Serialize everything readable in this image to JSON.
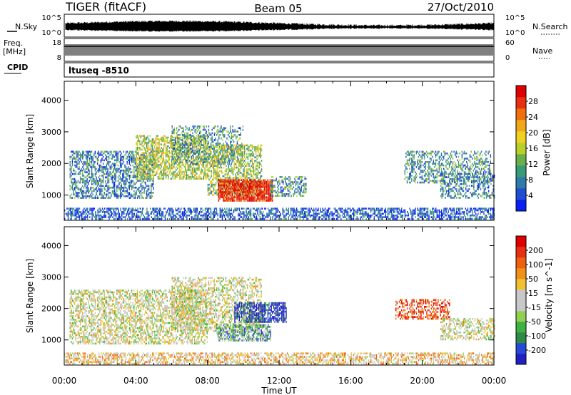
{
  "header": {
    "station": "TIGER (fitACF)",
    "beam": "Beam 05",
    "date": "27/Oct/2010"
  },
  "left_labels": {
    "nsky": "N.Sky",
    "nsky_top": "10^5",
    "nsky_bottom": "10^0",
    "freq": "Freq.",
    "freq_unit": "[MHz]",
    "freq_top": "18",
    "freq_bottom": "8",
    "cpid": "CPID"
  },
  "right_labels": {
    "nsearch": "N.Search",
    "nsearch_top": "10^5",
    "nsearch_bottom": "10^0",
    "nave": "Nave",
    "nave_top": "60",
    "nave_bottom": "0"
  },
  "cpid_text": "ltuseq -8510",
  "chart_data": [
    {
      "type": "heatmap",
      "name": "power",
      "ylabel": "Slant Range [km]",
      "yticks": [
        1000,
        2000,
        3000,
        4000
      ],
      "ylim": [
        200,
        4600
      ],
      "xlim": [
        0,
        24
      ],
      "colorbar": {
        "label": "Power [dB]",
        "ticks": [
          "4",
          "8",
          "12",
          "16",
          "20",
          "24",
          "28"
        ],
        "colors": [
          "#0a1ff5",
          "#1f4fd0",
          "#2f7aa8",
          "#3a9a78",
          "#6ab04a",
          "#b9cf2a",
          "#f0d020",
          "#f0a818",
          "#f07010",
          "#e83010",
          "#e00000"
        ]
      },
      "regions": [
        {
          "t0": 0.0,
          "t1": 24.0,
          "r0": 250,
          "r1": 600,
          "level": 0.15,
          "density": 0.6
        },
        {
          "t0": 0.3,
          "t1": 5.0,
          "r0": 900,
          "r1": 2400,
          "level": 0.25,
          "density": 0.55
        },
        {
          "t0": 4.0,
          "t1": 8.0,
          "r0": 1500,
          "r1": 2900,
          "level": 0.5,
          "density": 0.65
        },
        {
          "t0": 6.0,
          "t1": 10.0,
          "r0": 2000,
          "r1": 3200,
          "level": 0.3,
          "density": 0.4
        },
        {
          "t0": 8.0,
          "t1": 11.0,
          "r0": 1000,
          "r1": 2600,
          "level": 0.45,
          "density": 0.6
        },
        {
          "t0": 8.6,
          "t1": 11.6,
          "r0": 800,
          "r1": 1500,
          "level": 0.92,
          "density": 0.9
        },
        {
          "t0": 11.5,
          "t1": 13.5,
          "r0": 1000,
          "r1": 1600,
          "level": 0.3,
          "density": 0.5
        },
        {
          "t0": 19.0,
          "t1": 23.8,
          "r0": 1400,
          "r1": 2400,
          "level": 0.3,
          "density": 0.45
        },
        {
          "t0": 21.0,
          "t1": 24.0,
          "r0": 900,
          "r1": 1700,
          "level": 0.25,
          "density": 0.45
        }
      ]
    },
    {
      "type": "heatmap",
      "name": "velocity",
      "ylabel": "Slant Range [km]",
      "yticks": [
        1000,
        2000,
        3000,
        4000
      ],
      "ylim": [
        200,
        4600
      ],
      "xlim": [
        0,
        24
      ],
      "xlabel": "Time UT",
      "xticks": [
        "00:00",
        "04:00",
        "08:00",
        "12:00",
        "16:00",
        "20:00",
        "00:00"
      ],
      "colorbar": {
        "label": "Velocity [m s^-1]",
        "ticks": [
          "200",
          "100",
          "50",
          "15",
          "-15",
          "-50",
          "-100",
          "-200"
        ],
        "colors": [
          "#2020c0",
          "#2848d8",
          "#2f8a48",
          "#40b040",
          "#90d050",
          "#c8c8c8",
          "#c8c8c8",
          "#f0c030",
          "#f09018",
          "#f06010",
          "#e83010",
          "#e00000"
        ]
      },
      "regions": [
        {
          "t0": 0.0,
          "t1": 24.0,
          "r0": 250,
          "r1": 600,
          "level": 0.6,
          "density": 0.55
        },
        {
          "t0": 0.3,
          "t1": 8.0,
          "r0": 900,
          "r1": 2600,
          "level": 0.5,
          "density": 0.55
        },
        {
          "t0": 6.0,
          "t1": 11.0,
          "r0": 1300,
          "r1": 3000,
          "level": 0.5,
          "density": 0.5
        },
        {
          "t0": 8.5,
          "t1": 11.5,
          "r0": 1000,
          "r1": 1500,
          "level": 0.3,
          "density": 0.7
        },
        {
          "t0": 9.5,
          "t1": 12.4,
          "r0": 1600,
          "r1": 2200,
          "level": 0.05,
          "density": 0.7
        },
        {
          "t0": 18.5,
          "t1": 21.5,
          "r0": 1700,
          "r1": 2300,
          "level": 0.85,
          "density": 0.5
        },
        {
          "t0": 21.0,
          "t1": 24.0,
          "r0": 1000,
          "r1": 1700,
          "level": 0.5,
          "density": 0.45
        }
      ]
    }
  ]
}
